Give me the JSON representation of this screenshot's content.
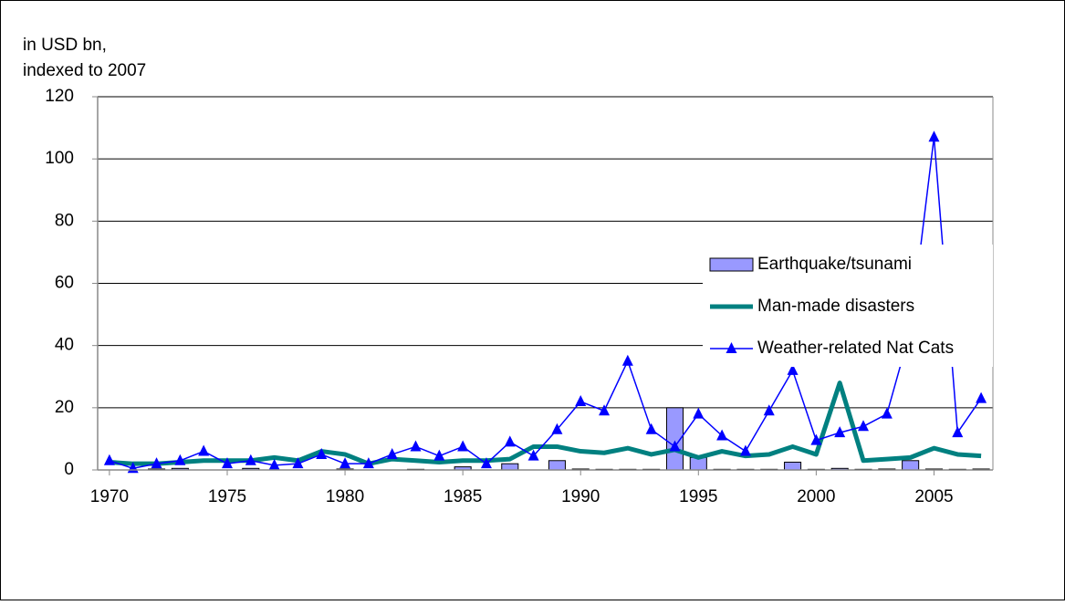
{
  "chart_data": {
    "type": "combo",
    "ylabel": [
      "in USD bn,",
      "indexed to 2007"
    ],
    "x": [
      1970,
      1971,
      1972,
      1973,
      1974,
      1975,
      1976,
      1977,
      1978,
      1979,
      1980,
      1981,
      1982,
      1983,
      1984,
      1985,
      1986,
      1987,
      1988,
      1989,
      1990,
      1991,
      1992,
      1993,
      1994,
      1995,
      1996,
      1997,
      1998,
      1999,
      2000,
      2001,
      2002,
      2003,
      2004,
      2005,
      2006,
      2007
    ],
    "xlim": [
      1969.5,
      2007.5
    ],
    "xticks": [
      1970,
      1975,
      1980,
      1985,
      1990,
      1995,
      2000,
      2005
    ],
    "ylim": [
      0,
      120
    ],
    "yticks": [
      0,
      20,
      40,
      60,
      80,
      100,
      120
    ],
    "grid": true,
    "legend": "right",
    "series": [
      {
        "name": "Earthquake/tsunami",
        "type": "bar",
        "color": "#9999ff",
        "values": [
          0,
          0,
          0.3,
          0.5,
          0,
          0,
          0.5,
          0,
          0,
          0,
          0.3,
          0,
          0,
          0.2,
          0,
          1,
          0,
          2,
          0,
          3,
          0.3,
          0.2,
          0.2,
          0.2,
          20,
          4,
          0.2,
          0.2,
          0.2,
          2.5,
          0.2,
          0.5,
          0.2,
          0.3,
          3,
          0.3,
          0.2,
          0.3
        ]
      },
      {
        "name": "Man-made disasters",
        "type": "line",
        "color": "#008080",
        "values": [
          2.5,
          2,
          2,
          2.5,
          3,
          3,
          3,
          4,
          3,
          6,
          5,
          2,
          3.5,
          3,
          2.5,
          3,
          3,
          3.5,
          7.5,
          7.5,
          6,
          5.5,
          7,
          5,
          6.5,
          4,
          6,
          4.5,
          5,
          7.5,
          5,
          28,
          3,
          3.5,
          4,
          7,
          5,
          4.5
        ]
      },
      {
        "name": "Weather-related Nat Cats",
        "type": "line-marker",
        "color": "#0000ff",
        "values": [
          3,
          0.5,
          2,
          3,
          6,
          2,
          3,
          1.5,
          2,
          5,
          2,
          2,
          5,
          7.5,
          4.5,
          7.5,
          2,
          9,
          4.5,
          13,
          22,
          19,
          35,
          13,
          7.5,
          18,
          11,
          6,
          19,
          32,
          9.5,
          12,
          14,
          18,
          45,
          107,
          12,
          23
        ]
      }
    ]
  }
}
